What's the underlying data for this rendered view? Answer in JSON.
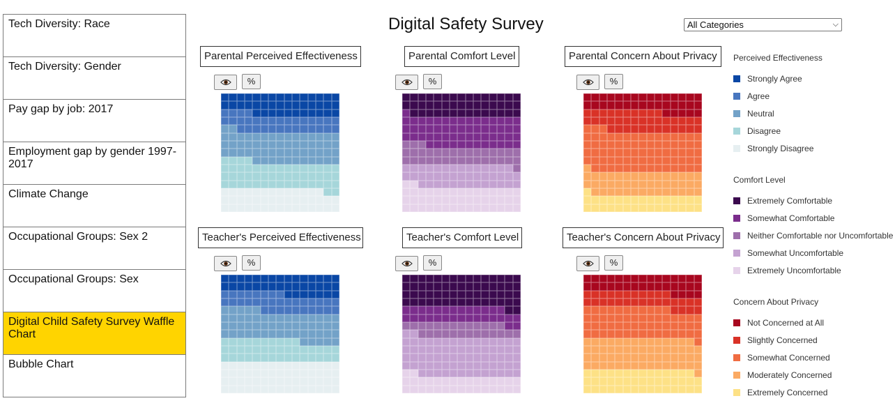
{
  "sidebar": {
    "items": [
      {
        "label": "Tech Diversity: Race"
      },
      {
        "label": "Tech Diversity: Gender"
      },
      {
        "label": "Pay gap by job: 2017"
      },
      {
        "label": "Employment gap by gender 1997-2017"
      },
      {
        "label": "Climate Change"
      },
      {
        "label": "Occupational Groups: Sex 2"
      },
      {
        "label": "Occupational Groups: Sex"
      },
      {
        "label": "Digital Child Safety Survey Waffle Chart"
      },
      {
        "label": "Bubble Chart"
      }
    ],
    "active_index": 7
  },
  "header": {
    "title": "Digital Safety Survey",
    "filter_value": "All Categories"
  },
  "controls": {
    "eye_icon": "eye-icon",
    "percent_label": "%"
  },
  "panels": [
    {
      "title": "Parental Perceived Effectiveness",
      "scale": "effectiveness"
    },
    {
      "title": "Parental Comfort Level",
      "scale": "comfort"
    },
    {
      "title": "Parental Concern About Privacy",
      "scale": "concern"
    },
    {
      "title": "Teacher's Perceived Effectiveness",
      "scale": "effectiveness"
    },
    {
      "title": "Teacher's Comfort Level",
      "scale": "comfort"
    },
    {
      "title": "Teacher's Concern About Privacy",
      "scale": "concern"
    }
  ],
  "legend": {
    "groups": [
      {
        "title": "Perceived Effectiveness",
        "items": [
          {
            "label": "Strongly Agree",
            "color": "#0a47a5"
          },
          {
            "label": "Agree",
            "color": "#4876bf"
          },
          {
            "label": "Neutral",
            "color": "#73a2c8"
          },
          {
            "label": "Disagree",
            "color": "#a6d6da"
          },
          {
            "label": "Strongly Disagree",
            "color": "#e6eff1"
          }
        ]
      },
      {
        "title": "Comfort Level",
        "items": [
          {
            "label": "Extremely Comfortable",
            "color": "#3b0a4e"
          },
          {
            "label": "Somewhat Comfortable",
            "color": "#7b2d8c"
          },
          {
            "label": "Neither Comfortable nor Uncomfortable",
            "color": "#9e6fab"
          },
          {
            "label": "Somewhat Uncomfortable",
            "color": "#c4a2d1"
          },
          {
            "label": "Extremely Uncomfortable",
            "color": "#e6d3ea"
          }
        ]
      },
      {
        "title": "Concern About Privacy",
        "items": [
          {
            "label": "Not Concerned at All",
            "color": "#a8071f"
          },
          {
            "label": "Slightly Concerned",
            "color": "#d93227"
          },
          {
            "label": "Somewhat Concerned",
            "color": "#f06c42"
          },
          {
            "label": "Moderately Concerned",
            "color": "#fbaa63"
          },
          {
            "label": "Extremely Concerned",
            "color": "#fde186"
          }
        ]
      }
    ]
  },
  "chart_data": [
    {
      "type": "waffle",
      "title": "Parental Perceived Effectiveness",
      "cells_total": 225,
      "categories": [
        "Strongly Agree",
        "Agree",
        "Neutral",
        "Disagree",
        "Strongly Disagree"
      ],
      "values": [
        41,
        32,
        58,
        51,
        43
      ]
    },
    {
      "type": "waffle",
      "title": "Parental Comfort Level",
      "cells_total": 225,
      "categories": [
        "Extremely Comfortable",
        "Somewhat Comfortable",
        "Neither Comfortable nor Uncomfortable",
        "Somewhat Uncomfortable",
        "Extremely Uncomfortable"
      ],
      "values": [
        44,
        58,
        34,
        42,
        47
      ]
    },
    {
      "type": "waffle",
      "title": "Parental Concern About Privacy",
      "cells_total": 225,
      "categories": [
        "Not Concerned at All",
        "Slightly Concerned",
        "Somewhat Concerned",
        "Moderately Concerned",
        "Extremely Concerned"
      ],
      "values": [
        35,
        37,
        77,
        45,
        31
      ]
    },
    {
      "type": "waffle",
      "title": "Teacher's Perceived Effectiveness",
      "cells_total": 225,
      "categories": [
        "Strongly Agree",
        "Agree",
        "Neutral",
        "Disagree",
        "Strongly Disagree"
      ],
      "values": [
        37,
        33,
        55,
        40,
        60
      ]
    },
    {
      "type": "waffle",
      "title": "Teacher's Comfort Level",
      "cells_total": 225,
      "categories": [
        "Extremely Comfortable",
        "Somewhat Comfortable",
        "Neither Comfortable nor Uncomfortable",
        "Somewhat Uncomfortable",
        "Extremely Uncomfortable"
      ],
      "values": [
        62,
        30,
        26,
        75,
        32
      ]
    },
    {
      "type": "waffle",
      "title": "Teacher's Concern About Privacy",
      "cells_total": 225,
      "categories": [
        "Not Concerned at All",
        "Slightly Concerned",
        "Somewhat Concerned",
        "Moderately Concerned",
        "Extremely Concerned"
      ],
      "values": [
        34,
        30,
        57,
        60,
        44
      ]
    }
  ]
}
